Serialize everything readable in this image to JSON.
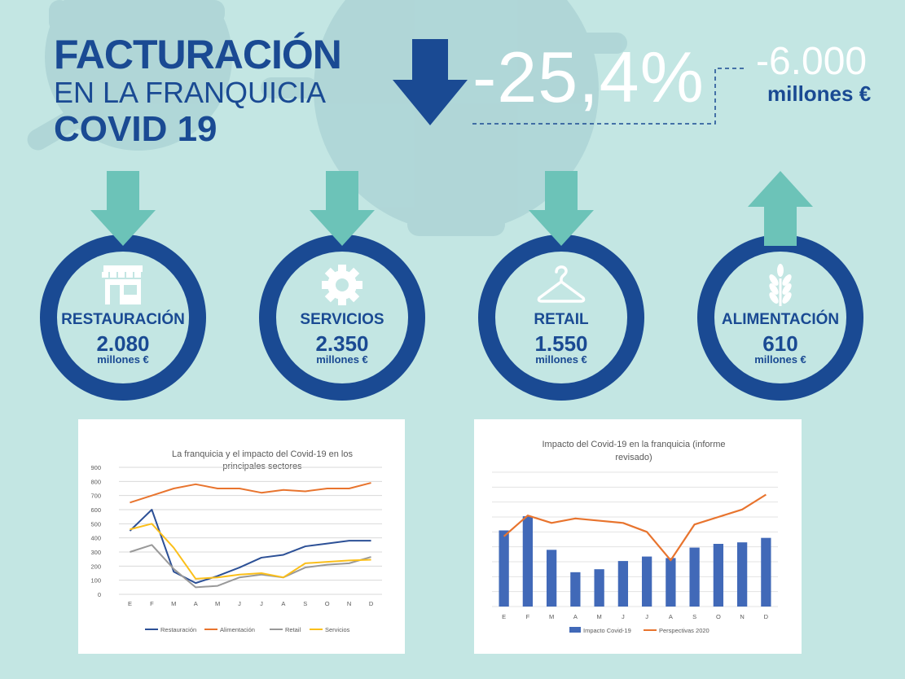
{
  "header": {
    "title_line1": "FACTURACIÓN",
    "title_line2": "EN LA FRANQUICIA",
    "title_line3": "COVID 19",
    "headline_change": "-25,4%",
    "headline_amount": "-6.000",
    "headline_unit": "millones €"
  },
  "categories": [
    {
      "name": "RESTAURACIÓN",
      "value": "2.080",
      "unit": "millones €",
      "trend": "down",
      "icon": "restaurant-icon"
    },
    {
      "name": "SERVICIOS",
      "value": "2.350",
      "unit": "millones €",
      "trend": "down",
      "icon": "gear-icon"
    },
    {
      "name": "RETAIL",
      "value": "1.550",
      "unit": "millones €",
      "trend": "down",
      "icon": "hanger-icon"
    },
    {
      "name": "ALIMENTACIÓN",
      "value": "610",
      "unit": "millones €",
      "trend": "up",
      "icon": "wheat-icon"
    }
  ],
  "colors": {
    "navy": "#1a4a93",
    "teal": "#6cc3b8",
    "background": "#c3e6e3"
  },
  "chart_data": [
    {
      "type": "line",
      "title": "La franquicia y el impacto del Covid-19 en los principales sectores",
      "categories": [
        "E",
        "F",
        "M",
        "A",
        "M",
        "J",
        "J",
        "A",
        "S",
        "O",
        "N",
        "D"
      ],
      "ylim": [
        0,
        900
      ],
      "yticks": [
        0,
        100,
        200,
        300,
        400,
        500,
        600,
        700,
        800,
        900
      ],
      "grid": true,
      "legend": "bottom",
      "series": [
        {
          "name": "Restauración",
          "color": "#2c5096",
          "values": [
            450,
            600,
            160,
            80,
            130,
            190,
            260,
            280,
            340,
            360,
            380,
            380
          ]
        },
        {
          "name": "Alimentación",
          "color": "#e8742e",
          "values": [
            650,
            700,
            750,
            780,
            750,
            750,
            720,
            740,
            730,
            750,
            750,
            790
          ]
        },
        {
          "name": "Retail",
          "color": "#999999",
          "values": [
            300,
            350,
            180,
            50,
            60,
            120,
            140,
            120,
            190,
            210,
            220,
            265
          ]
        },
        {
          "name": "Servicios",
          "color": "#fbbf1a",
          "values": [
            460,
            500,
            330,
            110,
            120,
            140,
            150,
            120,
            220,
            230,
            240,
            245
          ]
        }
      ]
    },
    {
      "type": "bar",
      "title": "Impacto del Covid-19 en la franquicia (informe revisado)",
      "categories": [
        "E",
        "F",
        "M",
        "A",
        "M",
        "J",
        "J",
        "A",
        "S",
        "O",
        "N",
        "D"
      ],
      "ylim": [
        0,
        900
      ],
      "grid": true,
      "legend": "bottom",
      "series": [
        {
          "name": "Impacto Covid-19",
          "type": "bar",
          "color": "#4169b8",
          "values": [
            510,
            605,
            380,
            230,
            250,
            305,
            335,
            325,
            395,
            420,
            430,
            460
          ]
        },
        {
          "name": "Perspectivas 2020",
          "type": "line",
          "color": "#e8742e",
          "values": [
            470,
            610,
            560,
            590,
            575,
            560,
            500,
            310,
            550,
            600,
            650,
            750
          ]
        }
      ]
    }
  ]
}
